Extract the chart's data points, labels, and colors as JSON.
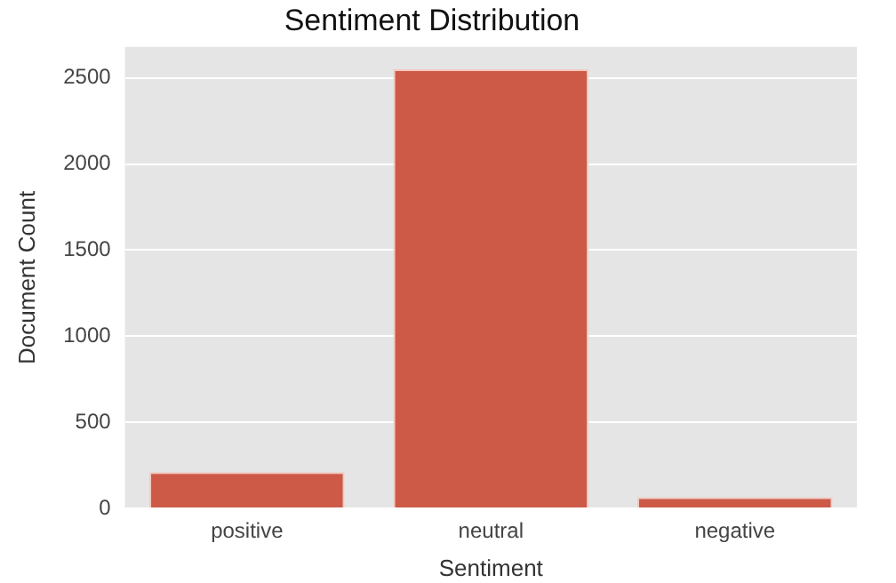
{
  "chart_data": {
    "type": "bar",
    "title": "Sentiment Distribution",
    "xlabel": "Sentiment",
    "ylabel": "Document Count",
    "categories": [
      "positive",
      "neutral",
      "negative"
    ],
    "values": [
      210,
      2550,
      65
    ],
    "color": "#cc5a47",
    "ylim": [
      0,
      2680
    ],
    "yticks": [
      0,
      500,
      1000,
      1500,
      2000,
      2500
    ],
    "grid": "y",
    "legend": false
  }
}
